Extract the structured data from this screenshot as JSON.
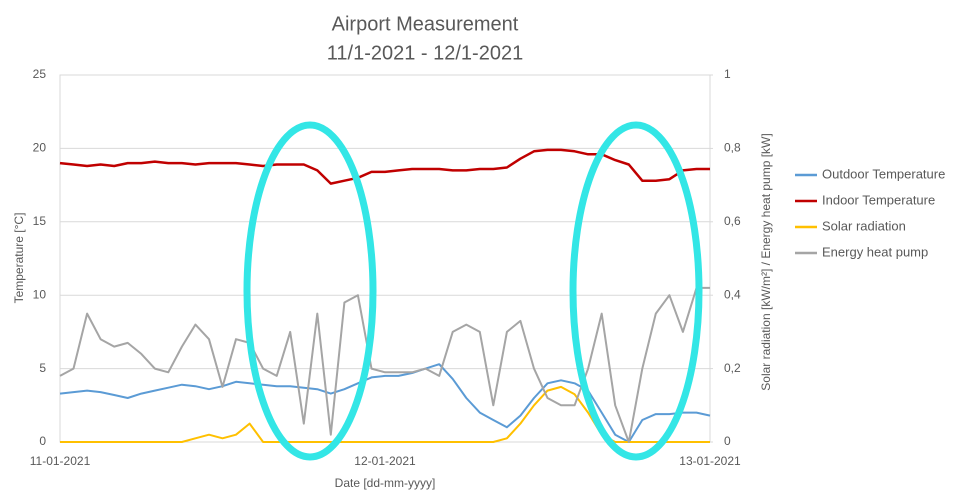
{
  "chart_data": {
    "type": "line",
    "title": "Airport Measurement",
    "subtitle": "11/1-2021 - 12/1-2021",
    "x_label": "Date [dd-mm-yyyy]",
    "y_label": "Temperature [°C]",
    "y2_label": "Solar radiation [kW/m²] / Energy heat pump [kW]",
    "categories": [
      "11-01-2021",
      null,
      null,
      null,
      null,
      null,
      null,
      null,
      null,
      null,
      null,
      null,
      null,
      null,
      null,
      null,
      null,
      null,
      null,
      null,
      null,
      null,
      null,
      null,
      "12-01-2021",
      null,
      null,
      null,
      null,
      null,
      null,
      null,
      null,
      null,
      null,
      null,
      null,
      null,
      null,
      null,
      null,
      null,
      null,
      null,
      null,
      null,
      null,
      null,
      "13-01-2021"
    ],
    "ylim": [
      0,
      25
    ],
    "yticks": [
      0,
      5,
      10,
      15,
      20,
      25
    ],
    "y2lim": [
      0,
      1
    ],
    "y2ticks": [
      0,
      {
        "value": 0.2,
        "label": "0,2"
      },
      {
        "value": 0.4,
        "label": "0,4"
      },
      {
        "value": 0.6,
        "label": "0,6"
      },
      {
        "value": 0.8,
        "label": "0,8"
      },
      1
    ],
    "grid": true,
    "legend": "right",
    "series": [
      {
        "name": "Outdoor Temperature",
        "color": "#5b9bd5",
        "values": [
          3.3,
          3.4,
          3.5,
          3.4,
          3.2,
          3.0,
          3.3,
          3.5,
          3.7,
          3.9,
          3.8,
          3.6,
          3.8,
          4.1,
          4.0,
          3.9,
          3.8,
          3.8,
          3.7,
          3.6,
          3.3,
          3.6,
          4.0,
          4.4,
          4.5,
          4.5,
          4.7,
          5.0,
          5.3,
          4.3,
          3.0,
          2.0,
          1.5,
          1.0,
          1.8,
          3.0,
          4.0,
          4.2,
          4.0,
          3.5,
          2.0,
          0.5,
          0.0,
          1.5,
          1.9,
          1.9,
          2.0,
          2.0,
          1.8
        ]
      },
      {
        "name": "Indoor Temperature",
        "color": "#c00000",
        "values": [
          19.0,
          18.9,
          18.8,
          18.9,
          18.8,
          19.0,
          19.0,
          19.1,
          19.0,
          19.0,
          18.9,
          19.0,
          19.0,
          19.0,
          18.9,
          18.8,
          18.9,
          18.9,
          18.9,
          18.5,
          17.6,
          17.8,
          18.0,
          18.4,
          18.4,
          18.5,
          18.6,
          18.6,
          18.6,
          18.5,
          18.5,
          18.6,
          18.6,
          18.7,
          19.3,
          19.8,
          19.9,
          19.9,
          19.8,
          19.6,
          19.6,
          19.2,
          18.9,
          17.8,
          17.8,
          17.9,
          18.5,
          18.6,
          18.6
        ]
      },
      {
        "name": "Solar radiation",
        "color": "#ffc000",
        "axis": "y2",
        "values": [
          0,
          0,
          0,
          0,
          0,
          0,
          0,
          0,
          0,
          0,
          0.01,
          0.02,
          0.01,
          0.02,
          0.05,
          0,
          0,
          0,
          0,
          0,
          0,
          0,
          0,
          0,
          0,
          0,
          0,
          0,
          0,
          0,
          0,
          0,
          0,
          0.01,
          0.05,
          0.1,
          0.14,
          0.15,
          0.13,
          0.08,
          0.02,
          0,
          0,
          0,
          0,
          0,
          0,
          0,
          0
        ]
      },
      {
        "name": "Energy heat pump",
        "color": "#a5a5a5",
        "axis": "y2",
        "values": [
          0.18,
          0.2,
          0.35,
          0.28,
          0.26,
          0.27,
          0.24,
          0.2,
          0.19,
          0.26,
          0.32,
          0.28,
          0.15,
          0.28,
          0.27,
          0.2,
          0.18,
          0.3,
          0.05,
          0.35,
          0.02,
          0.38,
          0.4,
          0.2,
          0.19,
          0.19,
          0.19,
          0.2,
          0.18,
          0.3,
          0.32,
          0.3,
          0.1,
          0.3,
          0.33,
          0.2,
          0.12,
          0.1,
          0.1,
          0.2,
          0.35,
          0.1,
          0.0,
          0.2,
          0.35,
          0.4,
          0.3,
          0.42,
          0.42
        ]
      }
    ]
  }
}
